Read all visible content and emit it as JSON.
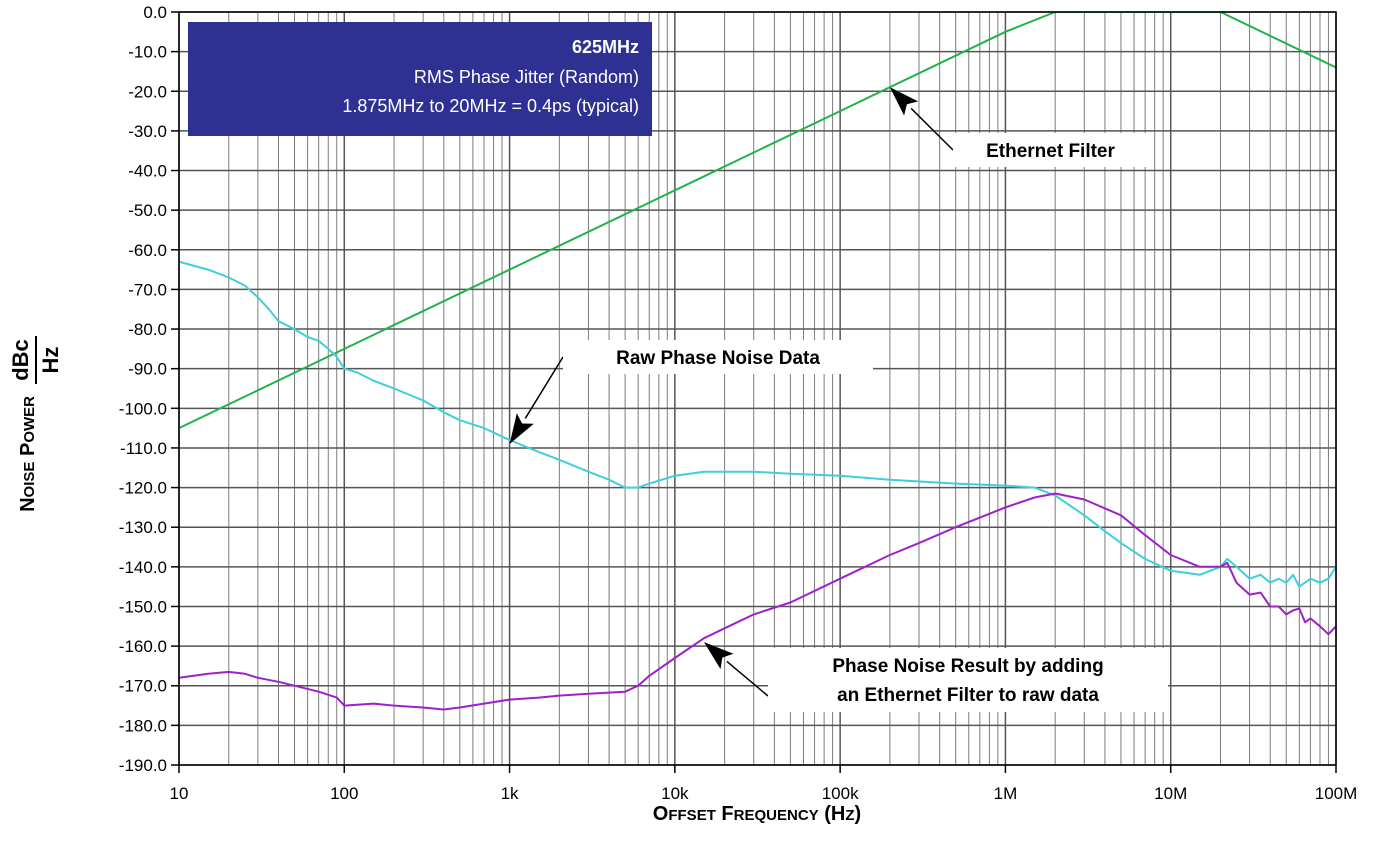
{
  "chart_data": {
    "type": "line",
    "x_scale": "log",
    "xlim": [
      10,
      100000000
    ],
    "ylim": [
      -190,
      0
    ],
    "grid": true,
    "x_ticks": [
      {
        "value": 10,
        "label": "10"
      },
      {
        "value": 100,
        "label": "100"
      },
      {
        "value": 1000,
        "label": "1k"
      },
      {
        "value": 10000,
        "label": "10k"
      },
      {
        "value": 100000,
        "label": "100k"
      },
      {
        "value": 1000000,
        "label": "1M"
      },
      {
        "value": 10000000,
        "label": "10M"
      },
      {
        "value": 100000000,
        "label": "100M"
      }
    ],
    "y_ticks": [
      {
        "value": 0,
        "label": "0.0"
      },
      {
        "value": -10,
        "label": "-10.0"
      },
      {
        "value": -20,
        "label": "-20.0"
      },
      {
        "value": -30,
        "label": "-30.0"
      },
      {
        "value": -40,
        "label": "-40.0"
      },
      {
        "value": -50,
        "label": "-50.0"
      },
      {
        "value": -60,
        "label": "-60.0"
      },
      {
        "value": -70,
        "label": "-70.0"
      },
      {
        "value": -80,
        "label": "-80.0"
      },
      {
        "value": -90,
        "label": "-90.0"
      },
      {
        "value": -100,
        "label": "-100.0"
      },
      {
        "value": -110,
        "label": "-110.0"
      },
      {
        "value": -120,
        "label": "-120.0"
      },
      {
        "value": -130,
        "label": "-130.0"
      },
      {
        "value": -140,
        "label": "-140.0"
      },
      {
        "value": -150,
        "label": "-150.0"
      },
      {
        "value": -160,
        "label": "-160.0"
      },
      {
        "value": -170,
        "label": "-170.0"
      },
      {
        "value": -180,
        "label": "-180.0"
      },
      {
        "value": -190,
        "label": "-190.0"
      }
    ],
    "xlabel": "Offset Frequency (Hz)",
    "ylabel_main": "Noise Power",
    "ylabel_num": "dBc",
    "ylabel_den": "Hz",
    "info_box": {
      "title": "625MHz",
      "line1": "RMS Phase Jitter (Random)",
      "line2": "1.875MHz to 20MHz = 0.4ps (typical)",
      "color": "#2e3192"
    },
    "series": [
      {
        "color": "#22b24c",
        "points": [
          [
            10,
            -105
          ],
          [
            100,
            -85
          ],
          [
            1000,
            -65
          ],
          [
            10000,
            -45
          ],
          [
            100000,
            -25
          ],
          [
            1000000,
            -5
          ],
          [
            2000000,
            0
          ],
          [
            20000000,
            0
          ],
          [
            100000000,
            -14
          ]
        ]
      },
      {
        "color": "#3ccfdc",
        "points": [
          [
            10,
            -63
          ],
          [
            15,
            -65
          ],
          [
            20,
            -67
          ],
          [
            25,
            -69
          ],
          [
            30,
            -72
          ],
          [
            35,
            -75
          ],
          [
            40,
            -78
          ],
          [
            50,
            -80
          ],
          [
            60,
            -82
          ],
          [
            70,
            -83
          ],
          [
            80,
            -85
          ],
          [
            90,
            -87
          ],
          [
            100,
            -90
          ],
          [
            120,
            -91
          ],
          [
            150,
            -93
          ],
          [
            200,
            -95
          ],
          [
            300,
            -98
          ],
          [
            400,
            -101
          ],
          [
            500,
            -103
          ],
          [
            700,
            -105
          ],
          [
            1000,
            -108
          ],
          [
            1500,
            -111
          ],
          [
            2000,
            -113
          ],
          [
            3000,
            -116
          ],
          [
            4000,
            -118
          ],
          [
            5000,
            -120
          ],
          [
            6000,
            -120
          ],
          [
            7000,
            -119
          ],
          [
            10000,
            -117
          ],
          [
            15000,
            -116
          ],
          [
            20000,
            -116
          ],
          [
            30000,
            -116
          ],
          [
            50000,
            -116.5
          ],
          [
            100000,
            -117
          ],
          [
            200000,
            -118
          ],
          [
            500000,
            -119
          ],
          [
            1000000,
            -119.5
          ],
          [
            1500000,
            -120
          ],
          [
            2000000,
            -122
          ],
          [
            3000000,
            -127
          ],
          [
            4000000,
            -131
          ],
          [
            5000000,
            -134
          ],
          [
            7000000,
            -138
          ],
          [
            10000000,
            -141
          ],
          [
            15000000,
            -142
          ],
          [
            20000000,
            -140
          ],
          [
            22000000,
            -138
          ],
          [
            25000000,
            -140
          ],
          [
            30000000,
            -143
          ],
          [
            35000000,
            -142
          ],
          [
            40000000,
            -144
          ],
          [
            45000000,
            -143
          ],
          [
            50000000,
            -144
          ],
          [
            55000000,
            -142
          ],
          [
            60000000,
            -145
          ],
          [
            70000000,
            -143
          ],
          [
            80000000,
            -144
          ],
          [
            90000000,
            -143
          ],
          [
            100000000,
            -140
          ]
        ]
      },
      {
        "color": "#a020c8",
        "points": [
          [
            10,
            -168
          ],
          [
            15,
            -167
          ],
          [
            20,
            -166.5
          ],
          [
            25,
            -167
          ],
          [
            30,
            -168
          ],
          [
            40,
            -169
          ],
          [
            50,
            -170
          ],
          [
            70,
            -171.5
          ],
          [
            90,
            -173
          ],
          [
            100,
            -175
          ],
          [
            150,
            -174.5
          ],
          [
            200,
            -175
          ],
          [
            300,
            -175.5
          ],
          [
            400,
            -176
          ],
          [
            500,
            -175.5
          ],
          [
            700,
            -174.5
          ],
          [
            1000,
            -173.5
          ],
          [
            1500,
            -173
          ],
          [
            2000,
            -172.5
          ],
          [
            3000,
            -172
          ],
          [
            5000,
            -171.5
          ],
          [
            6000,
            -170
          ],
          [
            7000,
            -167.5
          ],
          [
            10000,
            -163
          ],
          [
            15000,
            -158
          ],
          [
            20000,
            -155.5
          ],
          [
            30000,
            -152
          ],
          [
            50000,
            -149
          ],
          [
            100000,
            -143
          ],
          [
            200000,
            -137
          ],
          [
            300000,
            -134
          ],
          [
            500000,
            -130
          ],
          [
            1000000,
            -125
          ],
          [
            1500000,
            -122.5
          ],
          [
            2000000,
            -121.5
          ],
          [
            3000000,
            -123
          ],
          [
            5000000,
            -127
          ],
          [
            7000000,
            -132
          ],
          [
            10000000,
            -137
          ],
          [
            15000000,
            -140
          ],
          [
            20000000,
            -140
          ],
          [
            22000000,
            -139
          ],
          [
            25000000,
            -144
          ],
          [
            30000000,
            -147
          ],
          [
            35000000,
            -146.5
          ],
          [
            40000000,
            -150
          ],
          [
            45000000,
            -150
          ],
          [
            50000000,
            -152
          ],
          [
            55000000,
            -151
          ],
          [
            60000000,
            -150.5
          ],
          [
            65000000,
            -154
          ],
          [
            70000000,
            -153
          ],
          [
            80000000,
            -155
          ],
          [
            90000000,
            -157
          ],
          [
            100000000,
            -155
          ]
        ]
      }
    ],
    "annotations": [
      {
        "id": "ethernet",
        "text_lines": [
          "Ethernet Filter"
        ],
        "arrow_tip": [
          200000,
          -19
        ]
      },
      {
        "id": "raw",
        "text_lines": [
          "Raw Phase Noise Data"
        ],
        "arrow_tip": [
          1000,
          -109
        ]
      },
      {
        "id": "result",
        "text_lines": [
          "Phase Noise Result by adding",
          "an Ethernet Filter to raw data"
        ],
        "arrow_tip": [
          15000,
          -159
        ]
      }
    ]
  }
}
